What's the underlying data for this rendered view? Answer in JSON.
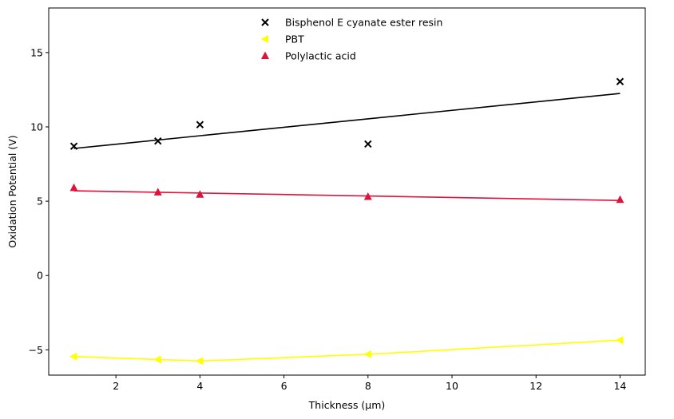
{
  "chart_data": {
    "type": "scatter",
    "xlabel": "Thickness (µm)",
    "ylabel": "Oxidation Potential (V)",
    "xlim": [
      0.4,
      14.6
    ],
    "ylim": [
      -6.7,
      18.0
    ],
    "xticks": [
      2,
      4,
      6,
      8,
      10,
      12,
      14
    ],
    "yticks": [
      -5,
      0,
      5,
      10,
      15
    ],
    "grid": false,
    "legend_position": "top-center",
    "series": [
      {
        "name": "Bisphenol E cyanate ester resin",
        "marker": "x",
        "color": "#000000",
        "points": [
          {
            "x": 1,
            "y": 8.7
          },
          {
            "x": 3,
            "y": 9.05
          },
          {
            "x": 4,
            "y": 10.15
          },
          {
            "x": 8,
            "y": 8.85
          },
          {
            "x": 14,
            "y": 13.05
          }
        ],
        "fit_line": [
          {
            "x": 1,
            "y": 8.55
          },
          {
            "x": 14,
            "y": 12.25
          }
        ]
      },
      {
        "name": "PBT",
        "marker": "triangle-left",
        "color": "#ffff00",
        "points": [
          {
            "x": 1,
            "y": -5.45
          },
          {
            "x": 3,
            "y": -5.65
          },
          {
            "x": 4,
            "y": -5.75
          },
          {
            "x": 8,
            "y": -5.3
          },
          {
            "x": 14,
            "y": -4.35
          }
        ],
        "fit_line": [
          {
            "x": 1,
            "y": -5.45
          },
          {
            "x": 3,
            "y": -5.65
          },
          {
            "x": 4,
            "y": -5.75
          },
          {
            "x": 8,
            "y": -5.3
          },
          {
            "x": 14,
            "y": -4.35
          }
        ]
      },
      {
        "name": "Polylactic acid",
        "marker": "triangle-up",
        "color": "#dc143c",
        "points": [
          {
            "x": 1,
            "y": 5.9
          },
          {
            "x": 3,
            "y": 5.6
          },
          {
            "x": 4,
            "y": 5.45
          },
          {
            "x": 8,
            "y": 5.3
          },
          {
            "x": 14,
            "y": 5.1
          }
        ],
        "fit_line": [
          {
            "x": 1,
            "y": 5.7
          },
          {
            "x": 14,
            "y": 5.05
          }
        ]
      }
    ]
  }
}
